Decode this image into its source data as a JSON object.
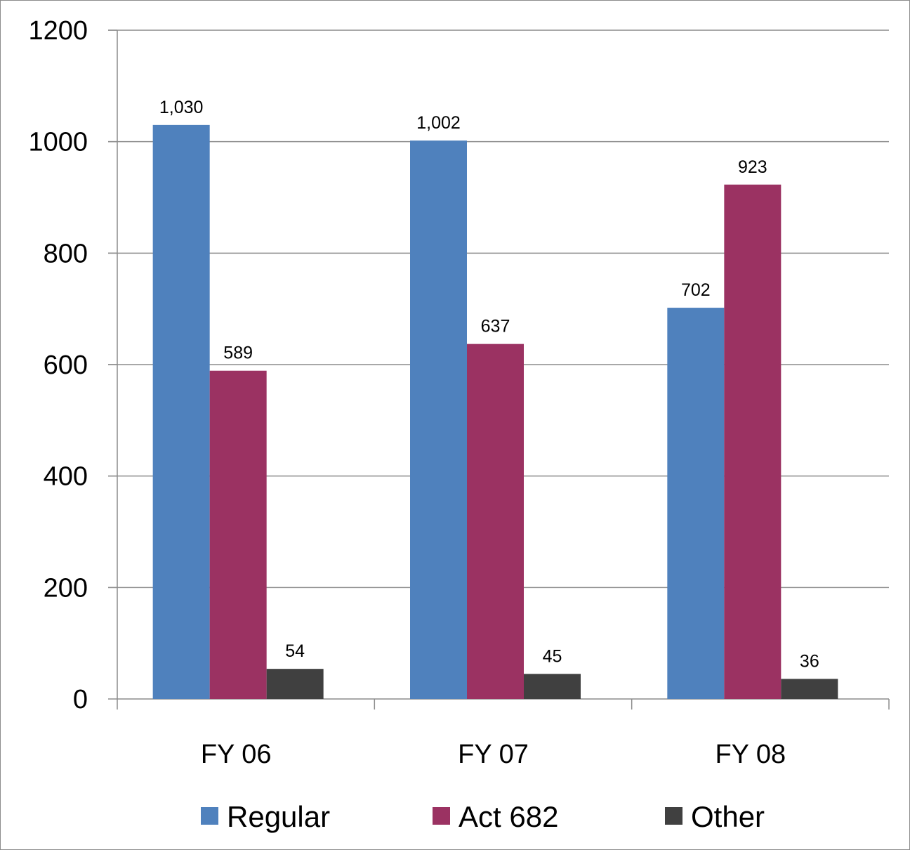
{
  "chart_data": {
    "type": "bar",
    "title": "",
    "xlabel": "",
    "ylabel": "",
    "ylim": [
      0,
      1200
    ],
    "yticks": [
      0,
      200,
      400,
      600,
      800,
      1000,
      1200
    ],
    "grid": true,
    "legend_position": "bottom",
    "categories": [
      "FY 06",
      "FY 07",
      "FY 08"
    ],
    "series": [
      {
        "name": "Regular",
        "color": "#4F81BD",
        "values": [
          1030,
          1002,
          702
        ],
        "labels": [
          "1,030",
          "1,002",
          "702"
        ]
      },
      {
        "name": "Act 682",
        "color": "#9B3262",
        "values": [
          589,
          637,
          923
        ],
        "labels": [
          "589",
          "637",
          "923"
        ]
      },
      {
        "name": "Other",
        "color": "#404040",
        "values": [
          54,
          45,
          36
        ],
        "labels": [
          "54",
          "45",
          "36"
        ]
      }
    ]
  }
}
